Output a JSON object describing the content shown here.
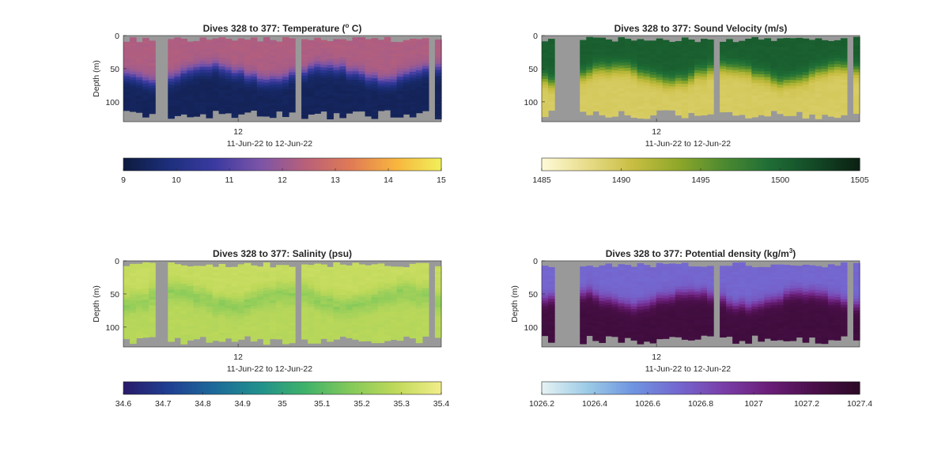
{
  "figure": {
    "background": "#ffffff",
    "missing_color": "#999999"
  },
  "chart_data": [
    {
      "type": "heatmap",
      "title": "Dives 328 to 377: Temperature (° C)",
      "title_parts": {
        "pre": "Dives 328 to 377: Temperature (",
        "sup": "o",
        "post": " C)"
      },
      "ylabel": "Depth (m)",
      "xlabel": "11-Jun-22 to 12-Jun-22",
      "x_ticks": [
        "12"
      ],
      "y_ticks": [
        0,
        50,
        100
      ],
      "ylim": [
        0,
        130
      ],
      "grid": false,
      "n_profiles": 50,
      "gap_profiles": [
        5,
        6,
        27,
        48
      ],
      "colorbar": {
        "ticks": [
          "9",
          "10",
          "11",
          "12",
          "13",
          "14",
          "15"
        ],
        "range": [
          9,
          15
        ],
        "colormap": [
          "#0d1b3e",
          "#1d2f7c",
          "#3a3aa0",
          "#7b54a8",
          "#b8607a",
          "#e07a55",
          "#f8b53e",
          "#f0f05a"
        ]
      },
      "layers": {
        "surface_value": 12.3,
        "deep_value": 9.4,
        "thermocline_m": [
          45,
          75
        ]
      }
    },
    {
      "type": "heatmap",
      "title": "Dives 328 to 377: Sound Velocity (m/s)",
      "title_parts": {
        "pre": "Dives 328 to 377: Sound Velocity (m/s)",
        "sup": "",
        "post": ""
      },
      "ylabel": "",
      "xlabel": "11-Jun-22 to 12-Jun-22",
      "x_ticks": [
        "12"
      ],
      "y_ticks": [
        0,
        50,
        100
      ],
      "ylim": [
        0,
        130
      ],
      "grid": false,
      "n_profiles": 50,
      "gap_profiles": [
        2,
        3,
        4,
        5,
        27,
        48
      ],
      "colorbar": {
        "ticks": [
          "1485",
          "1490",
          "1495",
          "1500",
          "1505"
        ],
        "range": [
          1485,
          1505
        ],
        "colormap": [
          "#fefbd8",
          "#e8dc8a",
          "#c8be42",
          "#8fa82a",
          "#4d8a30",
          "#1f6e36",
          "#134a26",
          "#0b1f12"
        ]
      },
      "layers": {
        "surface_value": 1500.5,
        "deep_value": 1489.5,
        "thermocline_m": [
          45,
          75
        ]
      }
    },
    {
      "type": "heatmap",
      "title": "Dives 328 to 377: Salinity (psu)",
      "title_parts": {
        "pre": "Dives 328 to 377: Salinity (psu)",
        "sup": "",
        "post": ""
      },
      "ylabel": "Depth (m)",
      "xlabel": "11-Jun-22 to 12-Jun-22",
      "x_ticks": [
        "12"
      ],
      "y_ticks": [
        0,
        50,
        100
      ],
      "ylim": [
        0,
        130
      ],
      "grid": false,
      "n_profiles": 50,
      "gap_profiles": [
        5,
        6,
        27,
        48
      ],
      "colorbar": {
        "ticks": [
          "34.6",
          "34.7",
          "34.8",
          "34.9",
          "35",
          "35.1",
          "35.2",
          "35.3",
          "35.4"
        ],
        "range": [
          34.6,
          35.4
        ],
        "colormap": [
          "#2a1b6a",
          "#1f3f92",
          "#1d6a9a",
          "#21908c",
          "#3fb26a",
          "#84c95a",
          "#bfd95a",
          "#f3ee8a"
        ]
      },
      "layers": {
        "surface_value": 35.3,
        "deep_value": 35.27,
        "thermocline_m": [
          45,
          75
        ],
        "mid_value": 35.18
      }
    },
    {
      "type": "heatmap",
      "title": "Dives 328 to 377: Potential density (kg/m³)",
      "title_parts": {
        "pre": "Dives 328 to 377: Potential density (kg/m",
        "sup": "3",
        "post": ")"
      },
      "ylabel": "Depth (m)",
      "xlabel": "11-Jun-22 to 12-Jun-22",
      "x_ticks": [
        "12"
      ],
      "y_ticks": [
        0,
        50,
        100
      ],
      "ylim": [
        0,
        130
      ],
      "grid": false,
      "n_profiles": 50,
      "gap_profiles": [
        2,
        3,
        4,
        5,
        27,
        48
      ],
      "colorbar": {
        "ticks": [
          "1026.2",
          "1026.4",
          "1026.6",
          "1026.8",
          "1027",
          "1027.2",
          "1027.4"
        ],
        "range": [
          1026.2,
          1027.4
        ],
        "colormap": [
          "#e6f2f4",
          "#9ccbe6",
          "#6f95e0",
          "#7468d0",
          "#7a3ea8",
          "#6a1e78",
          "#4a0f4a",
          "#2c0a26"
        ]
      },
      "layers": {
        "surface_value": 1026.72,
        "deep_value": 1027.28,
        "thermocline_m": [
          45,
          75
        ]
      }
    }
  ]
}
